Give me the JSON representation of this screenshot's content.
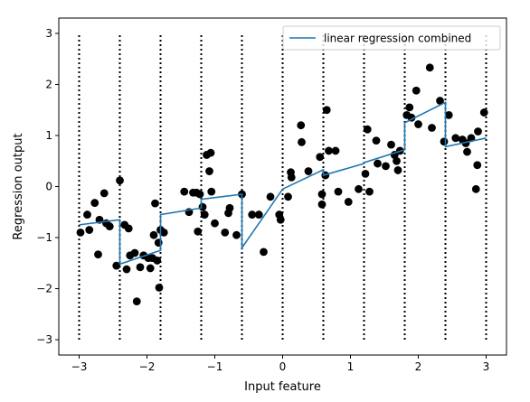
{
  "chart_data": {
    "type": "line",
    "title": "",
    "xlabel": "Input feature",
    "ylabel": "Regression output",
    "xlim": [
      -3.3,
      3.3
    ],
    "ylim": [
      -3.3,
      3.3
    ],
    "xticks": [
      -3,
      -2,
      -1,
      0,
      1,
      2,
      3
    ],
    "yticks": [
      -3,
      -2,
      -1,
      0,
      1,
      2,
      3
    ],
    "xtick_labels": [
      "−3",
      "−2",
      "−1",
      "0",
      "1",
      "2",
      "3"
    ],
    "ytick_labels": [
      "−3",
      "−2",
      "−1",
      "0",
      "1",
      "2",
      "3"
    ],
    "grid": false,
    "legend": {
      "position": "top-right",
      "entries": [
        "linear regression combined"
      ]
    },
    "line_color": "#1f77b4",
    "point_color": "#000000",
    "bins": {
      "edges": [
        -3.0,
        -2.4,
        -1.8,
        -1.2,
        -0.6,
        0.0,
        0.6,
        1.2,
        1.8,
        2.4,
        3.0
      ],
      "y_range": [
        -3,
        3
      ],
      "style": "dotted"
    },
    "series": [
      {
        "name": "linear regression combined",
        "kind": "line",
        "segments": [
          [
            [
              -3.0,
              -0.75
            ],
            [
              -2.4,
              -0.65
            ]
          ],
          [
            [
              -2.4,
              -1.52
            ],
            [
              -1.8,
              -1.25
            ]
          ],
          [
            [
              -1.8,
              -0.55
            ],
            [
              -1.2,
              -0.42
            ]
          ],
          [
            [
              -1.2,
              -0.25
            ],
            [
              -0.6,
              -0.15
            ]
          ],
          [
            [
              -0.6,
              -1.2
            ],
            [
              0.0,
              -0.05
            ]
          ],
          [
            [
              0.0,
              -0.05
            ],
            [
              0.6,
              0.33
            ]
          ],
          [
            [
              0.6,
              0.22
            ],
            [
              1.2,
              0.45
            ]
          ],
          [
            [
              1.2,
              0.47
            ],
            [
              1.8,
              0.72
            ]
          ],
          [
            [
              1.8,
              1.25
            ],
            [
              2.4,
              1.65
            ]
          ],
          [
            [
              2.4,
              0.78
            ],
            [
              3.0,
              0.95
            ]
          ]
        ]
      },
      {
        "kind": "scatter",
        "points": [
          [
            -2.98,
            -0.9
          ],
          [
            -2.88,
            -0.55
          ],
          [
            -2.85,
            -0.85
          ],
          [
            -2.77,
            -0.32
          ],
          [
            -2.72,
            -1.33
          ],
          [
            -2.7,
            -0.65
          ],
          [
            -2.63,
            -0.13
          ],
          [
            -2.6,
            -0.72
          ],
          [
            -2.55,
            -0.78
          ],
          [
            -2.45,
            -1.55
          ],
          [
            -2.4,
            0.12
          ],
          [
            -2.33,
            -0.75
          ],
          [
            -2.3,
            -1.62
          ],
          [
            -2.27,
            -0.82
          ],
          [
            -2.25,
            -1.35
          ],
          [
            -2.18,
            -1.3
          ],
          [
            -2.15,
            -2.25
          ],
          [
            -2.1,
            -1.58
          ],
          [
            -2.05,
            -1.35
          ],
          [
            -1.98,
            -1.4
          ],
          [
            -1.95,
            -1.6
          ],
          [
            -1.92,
            -1.4
          ],
          [
            -1.9,
            -0.95
          ],
          [
            -1.88,
            -0.33
          ],
          [
            -1.85,
            -1.45
          ],
          [
            -1.83,
            -1.1
          ],
          [
            -1.82,
            -1.98
          ],
          [
            -1.8,
            -0.85
          ],
          [
            -1.75,
            -0.9
          ],
          [
            -1.45,
            -0.1
          ],
          [
            -1.38,
            -0.5
          ],
          [
            -1.32,
            -0.12
          ],
          [
            -1.27,
            -0.12
          ],
          [
            -1.25,
            -0.88
          ],
          [
            -1.22,
            -0.15
          ],
          [
            -1.18,
            -0.4
          ],
          [
            -1.15,
            -0.55
          ],
          [
            -1.12,
            0.62
          ],
          [
            -1.08,
            0.3
          ],
          [
            -1.06,
            0.66
          ],
          [
            -1.05,
            -0.1
          ],
          [
            -1.0,
            -0.72
          ],
          [
            -0.85,
            -0.9
          ],
          [
            -0.8,
            -0.52
          ],
          [
            -0.78,
            -0.42
          ],
          [
            -0.68,
            -0.95
          ],
          [
            -0.6,
            -0.15
          ],
          [
            -0.45,
            -0.55
          ],
          [
            -0.35,
            -0.55
          ],
          [
            -0.28,
            -1.28
          ],
          [
            -0.18,
            -0.2
          ],
          [
            -0.05,
            -0.55
          ],
          [
            -0.03,
            -0.65
          ],
          [
            0.08,
            -0.2
          ],
          [
            0.12,
            0.28
          ],
          [
            0.13,
            0.18
          ],
          [
            0.27,
            1.2
          ],
          [
            0.28,
            0.87
          ],
          [
            0.38,
            0.3
          ],
          [
            0.55,
            0.58
          ],
          [
            0.58,
            -0.15
          ],
          [
            0.58,
            -0.35
          ],
          [
            0.63,
            0.22
          ],
          [
            0.65,
            1.5
          ],
          [
            0.68,
            0.7
          ],
          [
            0.78,
            0.7
          ],
          [
            0.82,
            -0.1
          ],
          [
            0.97,
            -0.3
          ],
          [
            1.12,
            -0.05
          ],
          [
            1.22,
            0.25
          ],
          [
            1.25,
            1.12
          ],
          [
            1.28,
            -0.1
          ],
          [
            1.38,
            0.9
          ],
          [
            1.4,
            0.45
          ],
          [
            1.52,
            0.4
          ],
          [
            1.6,
            0.82
          ],
          [
            1.65,
            0.62
          ],
          [
            1.68,
            0.5
          ],
          [
            1.7,
            0.32
          ],
          [
            1.73,
            0.7
          ],
          [
            1.83,
            1.4
          ],
          [
            1.87,
            1.55
          ],
          [
            1.9,
            1.35
          ],
          [
            1.97,
            1.88
          ],
          [
            2.0,
            1.22
          ],
          [
            2.17,
            2.33
          ],
          [
            2.2,
            1.15
          ],
          [
            2.32,
            1.68
          ],
          [
            2.38,
            0.88
          ],
          [
            2.45,
            1.4
          ],
          [
            2.55,
            0.95
          ],
          [
            2.65,
            0.92
          ],
          [
            2.7,
            0.85
          ],
          [
            2.72,
            0.68
          ],
          [
            2.78,
            0.95
          ],
          [
            2.85,
            -0.05
          ],
          [
            2.87,
            0.42
          ],
          [
            2.88,
            1.08
          ],
          [
            2.97,
            1.45
          ]
        ]
      }
    ]
  }
}
